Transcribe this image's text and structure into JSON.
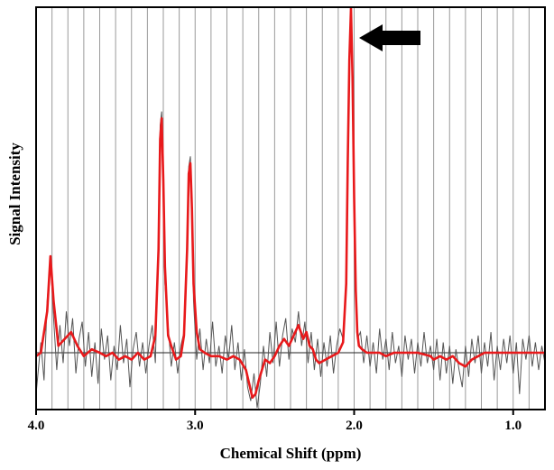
{
  "chart_data": {
    "type": "line",
    "title": "",
    "xlabel": "Chemical Shift (ppm)",
    "ylabel": "Signal Intensity",
    "xlim": [
      4.0,
      0.8
    ],
    "x_reversed": true,
    "ylim": [
      -0.18,
      1.0
    ],
    "grid": {
      "vertical": true,
      "horizontal": false
    },
    "ticks": [
      {
        "value": 4.0,
        "label": "4.0"
      },
      {
        "value": 3.0,
        "label": "3.0"
      },
      {
        "value": 2.0,
        "label": "2.0"
      },
      {
        "value": 1.0,
        "label": "1.0"
      }
    ],
    "annotation": {
      "type": "arrow",
      "points_to_ppm": 2.0,
      "direction": "left"
    },
    "series": [
      {
        "role": "fit",
        "color": "#e8191b",
        "x": [
          4.0,
          3.97,
          3.93,
          3.91,
          3.89,
          3.86,
          3.82,
          3.78,
          3.74,
          3.7,
          3.65,
          3.6,
          3.56,
          3.52,
          3.48,
          3.44,
          3.4,
          3.36,
          3.32,
          3.28,
          3.25,
          3.23,
          3.22,
          3.21,
          3.2,
          3.19,
          3.17,
          3.15,
          3.12,
          3.09,
          3.07,
          3.05,
          3.04,
          3.03,
          3.02,
          3.01,
          2.99,
          2.97,
          2.94,
          2.9,
          2.85,
          2.8,
          2.76,
          2.72,
          2.68,
          2.66,
          2.64,
          2.62,
          2.6,
          2.58,
          2.56,
          2.53,
          2.5,
          2.47,
          2.44,
          2.41,
          2.38,
          2.35,
          2.32,
          2.3,
          2.28,
          2.26,
          2.24,
          2.22,
          2.18,
          2.14,
          2.1,
          2.07,
          2.05,
          2.04,
          2.03,
          2.02,
          2.01,
          2.0,
          1.99,
          1.98,
          1.97,
          1.95,
          1.92,
          1.88,
          1.84,
          1.8,
          1.75,
          1.7,
          1.6,
          1.52,
          1.5,
          1.46,
          1.42,
          1.38,
          1.34,
          1.3,
          1.26,
          1.22,
          1.18,
          1.1,
          1.0,
          0.9,
          0.8
        ],
        "y": [
          -0.01,
          0.0,
          0.12,
          0.28,
          0.15,
          0.02,
          0.04,
          0.06,
          0.02,
          -0.01,
          0.01,
          0.0,
          -0.01,
          0.0,
          -0.02,
          -0.01,
          -0.02,
          0.0,
          -0.02,
          -0.01,
          0.05,
          0.3,
          0.62,
          0.68,
          0.5,
          0.25,
          0.05,
          0.02,
          -0.02,
          -0.01,
          0.05,
          0.3,
          0.52,
          0.55,
          0.42,
          0.2,
          0.06,
          0.01,
          0.0,
          -0.01,
          -0.01,
          -0.02,
          -0.01,
          -0.02,
          -0.05,
          -0.09,
          -0.13,
          -0.12,
          -0.08,
          -0.05,
          -0.02,
          -0.03,
          -0.01,
          0.02,
          0.04,
          0.02,
          0.05,
          0.08,
          0.04,
          0.06,
          0.02,
          0.01,
          -0.02,
          -0.03,
          -0.02,
          -0.01,
          0.0,
          0.03,
          0.2,
          0.55,
          0.85,
          1.0,
          0.8,
          0.45,
          0.18,
          0.06,
          0.02,
          0.01,
          0.0,
          0.0,
          0.0,
          -0.01,
          0.0,
          0.0,
          0.0,
          -0.01,
          -0.02,
          -0.01,
          -0.02,
          -0.01,
          -0.03,
          -0.04,
          -0.02,
          -0.01,
          0.0,
          0.0,
          0.0,
          0.0,
          0.0
        ]
      },
      {
        "role": "raw-spectrum",
        "color": "#555555",
        "x": [
          4.0,
          3.97,
          3.95,
          3.93,
          3.91,
          3.89,
          3.87,
          3.85,
          3.83,
          3.81,
          3.79,
          3.77,
          3.75,
          3.73,
          3.71,
          3.69,
          3.67,
          3.65,
          3.63,
          3.61,
          3.59,
          3.57,
          3.55,
          3.53,
          3.51,
          3.49,
          3.47,
          3.45,
          3.43,
          3.41,
          3.39,
          3.37,
          3.35,
          3.33,
          3.31,
          3.29,
          3.27,
          3.25,
          3.23,
          3.22,
          3.21,
          3.2,
          3.19,
          3.17,
          3.15,
          3.13,
          3.11,
          3.09,
          3.07,
          3.05,
          3.04,
          3.03,
          3.02,
          3.01,
          2.99,
          2.97,
          2.95,
          2.93,
          2.91,
          2.89,
          2.87,
          2.85,
          2.83,
          2.81,
          2.79,
          2.77,
          2.75,
          2.73,
          2.71,
          2.69,
          2.67,
          2.65,
          2.63,
          2.61,
          2.59,
          2.57,
          2.55,
          2.53,
          2.51,
          2.49,
          2.47,
          2.45,
          2.43,
          2.41,
          2.39,
          2.37,
          2.35,
          2.33,
          2.31,
          2.29,
          2.27,
          2.25,
          2.23,
          2.21,
          2.19,
          2.17,
          2.15,
          2.13,
          2.11,
          2.09,
          2.07,
          2.05,
          2.04,
          2.03,
          2.02,
          2.01,
          2.0,
          1.99,
          1.98,
          1.96,
          1.94,
          1.92,
          1.9,
          1.88,
          1.86,
          1.84,
          1.82,
          1.8,
          1.78,
          1.76,
          1.74,
          1.72,
          1.7,
          1.68,
          1.66,
          1.64,
          1.62,
          1.6,
          1.58,
          1.56,
          1.54,
          1.52,
          1.5,
          1.48,
          1.46,
          1.44,
          1.42,
          1.4,
          1.38,
          1.36,
          1.34,
          1.32,
          1.3,
          1.28,
          1.26,
          1.24,
          1.22,
          1.2,
          1.18,
          1.16,
          1.14,
          1.12,
          1.1,
          1.08,
          1.06,
          1.04,
          1.02,
          1.0,
          0.98,
          0.96,
          0.94,
          0.92,
          0.9,
          0.88,
          0.86,
          0.84,
          0.82,
          0.8
        ],
        "y": [
          -0.12,
          0.03,
          -0.08,
          0.15,
          0.27,
          0.1,
          -0.05,
          0.08,
          -0.03,
          0.12,
          0.02,
          0.1,
          -0.06,
          0.04,
          0.09,
          -0.04,
          0.06,
          -0.07,
          0.03,
          -0.09,
          0.07,
          -0.02,
          0.05,
          -0.08,
          0.02,
          -0.05,
          0.08,
          -0.03,
          0.04,
          -0.1,
          0.01,
          0.06,
          -0.04,
          0.03,
          -0.06,
          0.02,
          0.08,
          -0.03,
          0.35,
          0.66,
          0.7,
          0.48,
          0.2,
          0.08,
          -0.04,
          0.03,
          -0.06,
          0.02,
          0.06,
          0.28,
          0.54,
          0.57,
          0.4,
          0.15,
          -0.02,
          0.07,
          -0.05,
          0.04,
          -0.03,
          0.09,
          -0.04,
          0.02,
          -0.06,
          0.05,
          -0.02,
          0.08,
          -0.05,
          0.03,
          -0.08,
          0.01,
          -0.1,
          -0.14,
          -0.06,
          -0.16,
          -0.09,
          0.02,
          -0.07,
          0.06,
          -0.03,
          0.09,
          -0.04,
          0.05,
          0.1,
          -0.02,
          0.07,
          0.03,
          0.12,
          0.02,
          0.09,
          -0.03,
          0.06,
          -0.05,
          0.04,
          -0.07,
          0.03,
          -0.04,
          0.05,
          -0.06,
          0.02,
          0.07,
          0.04,
          0.22,
          0.57,
          0.86,
          0.99,
          0.78,
          0.46,
          0.2,
          0.04,
          0.06,
          -0.03,
          0.05,
          -0.04,
          0.03,
          -0.06,
          0.07,
          -0.02,
          0.04,
          -0.05,
          0.06,
          -0.03,
          0.02,
          -0.07,
          0.05,
          -0.02,
          0.04,
          -0.06,
          0.03,
          -0.04,
          0.06,
          -0.03,
          0.02,
          -0.05,
          0.04,
          -0.08,
          0.03,
          -0.06,
          0.02,
          -0.09,
          0.01,
          -0.05,
          -0.1,
          0.02,
          -0.07,
          0.04,
          -0.03,
          0.05,
          -0.06,
          0.03,
          -0.04,
          0.06,
          -0.08,
          0.02,
          -0.05,
          0.04,
          -0.03,
          0.05,
          -0.06,
          0.03,
          -0.12,
          0.04,
          -0.02,
          0.05,
          -0.04,
          0.03,
          -0.05,
          0.02,
          -0.03
        ]
      }
    ]
  }
}
